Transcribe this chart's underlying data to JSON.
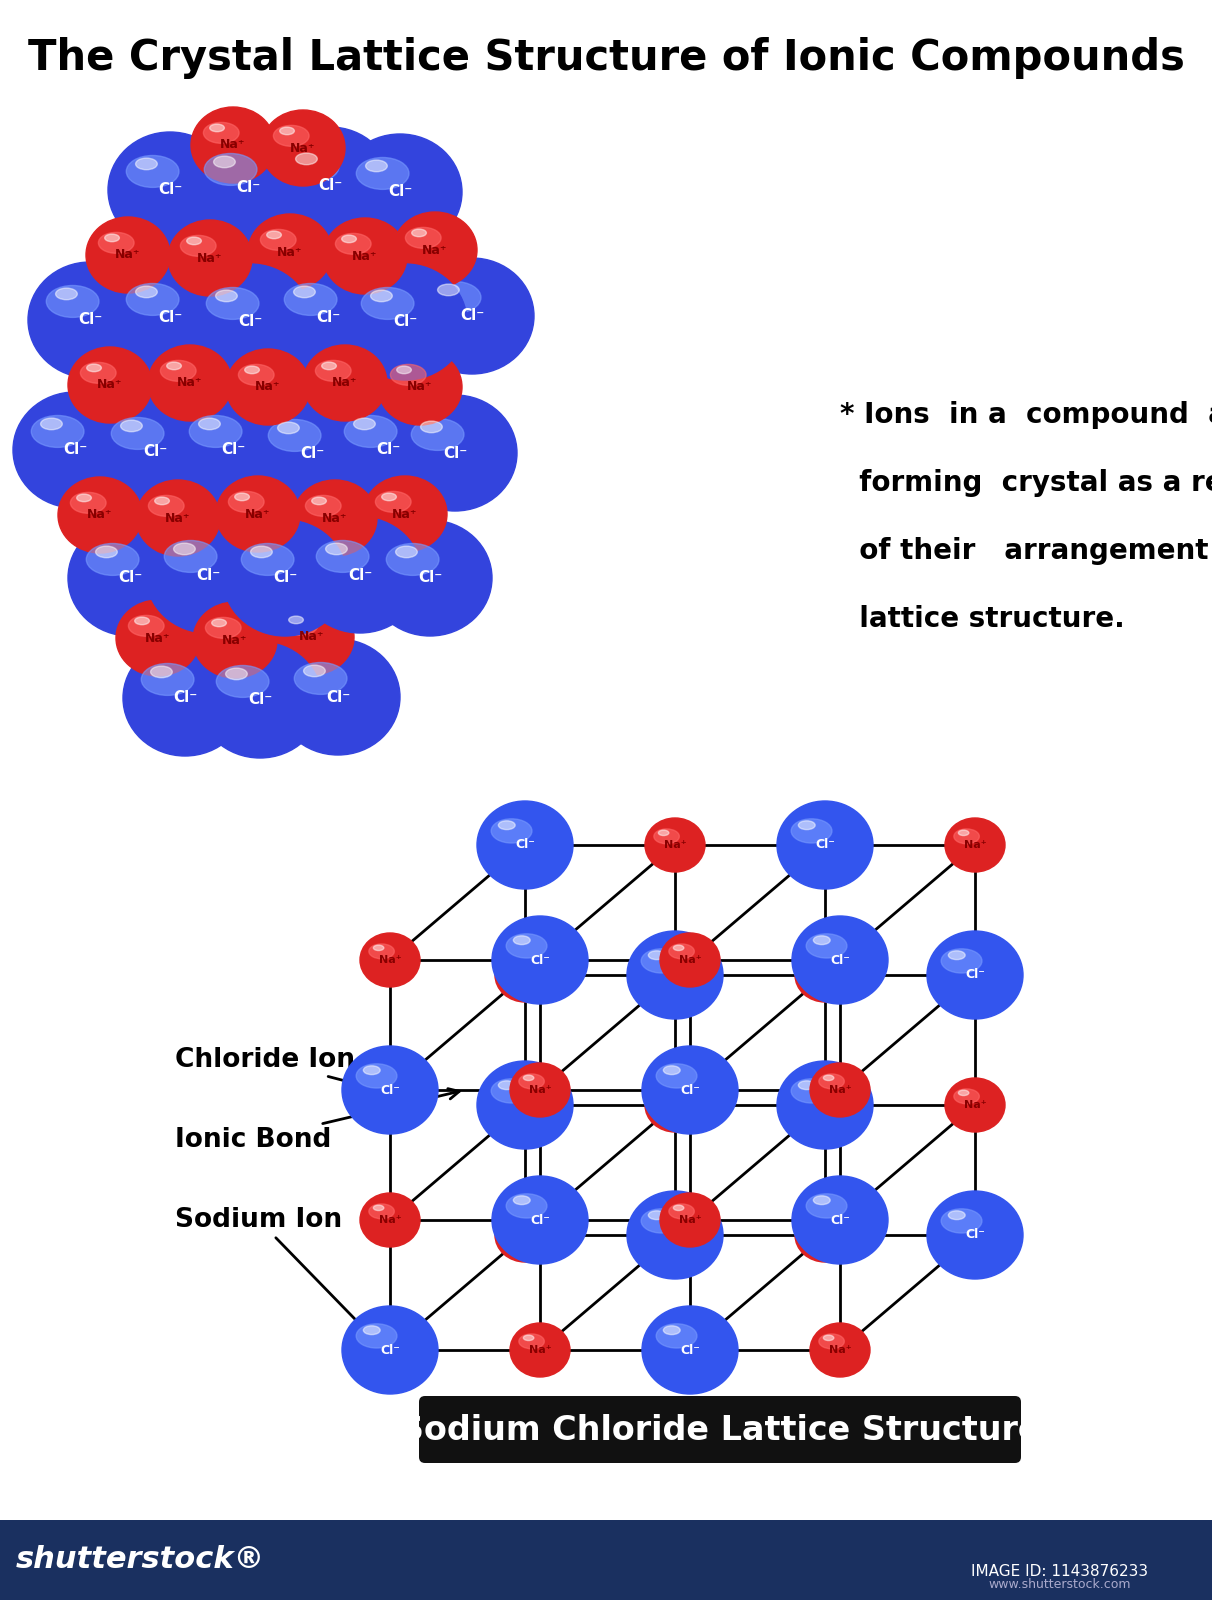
{
  "title": "The Crystal Lattice Structure of Ionic Compounds",
  "title_fontsize": 30,
  "bg_color": "#ffffff",
  "cl_color": "#3344dd",
  "cl_color_light": "#7799ff",
  "na_color": "#dd2222",
  "na_color_light": "#ff6666",
  "annotation_line1": "* Ions  in a  compound  are",
  "annotation_line2": "  forming  crystal as a result",
  "annotation_line3": "  of their   arrangement in a",
  "annotation_line4": "  lattice structure.",
  "label_chloride": "Chloride Ion",
  "label_ionic": "Ionic Bond",
  "label_sodium": "Sodium Ion",
  "caption": "Sodium Chloride Lattice Structure",
  "caption_bg": "#111111",
  "caption_color": "#ffffff",
  "caption_fontsize": 24,
  "bottom_bar_color": "#1a3060",
  "shutterstock_text": "shutterstock®",
  "image_id": "IMAGE ID: 1143876233"
}
